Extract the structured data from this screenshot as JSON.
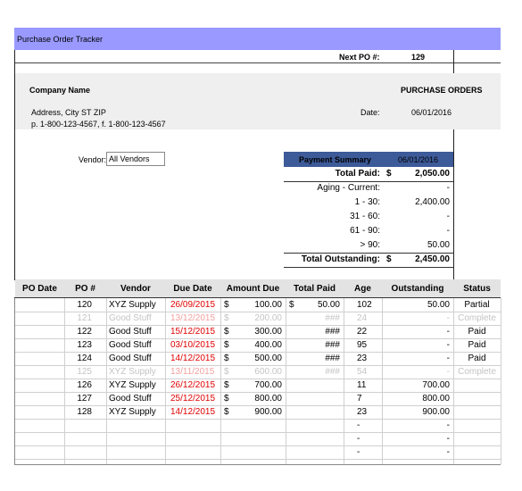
{
  "sheet": {
    "title": "Purchase Order Tracker",
    "next_po_label": "Next PO #:",
    "next_po_value": "129"
  },
  "header": {
    "company_name": "Company Name",
    "doc_title": "PURCHASE ORDERS",
    "address": "Address, City ST ZIP",
    "phone_fax": "p. 1-800-123-4567, f. 1-800-123-4567",
    "date_label": "Date:",
    "date_value": "06/01/2016"
  },
  "filter": {
    "vendor_label": "Vendor:",
    "vendor_value": "All Vendors"
  },
  "summary": {
    "title": "Payment Summary",
    "date": "06/01/2016",
    "rows": [
      {
        "label": "Total Paid:",
        "cur": "$",
        "value": "2,050.00",
        "bold": true
      },
      {
        "label": "Aging - Current:",
        "cur": "",
        "value": "-",
        "bold": false
      },
      {
        "label": "1 - 30:",
        "cur": "",
        "value": "2,400.00",
        "bold": false
      },
      {
        "label": "31 - 60:",
        "cur": "",
        "value": "-",
        "bold": false
      },
      {
        "label": "61 - 90:",
        "cur": "",
        "value": "-",
        "bold": false
      },
      {
        "label": "> 90:",
        "cur": "",
        "value": "50.00",
        "bold": false
      },
      {
        "label": "Total Outstanding:",
        "cur": "$",
        "value": "2,450.00",
        "bold": true
      }
    ]
  },
  "table": {
    "columns": [
      "PO Date",
      "PO #",
      "Vendor",
      "Due Date",
      "Amount Due",
      "Total Paid",
      "Age",
      "Outstanding",
      "Status"
    ],
    "rows": [
      {
        "po": "120",
        "vendor": "XYZ Supply",
        "due": "26/09/2015",
        "amt_cur": "$",
        "amt": "100.00",
        "paid_cur": "$",
        "paid": "50.00",
        "age": "102",
        "out": "50.00",
        "status": "Partial",
        "style": "normal"
      },
      {
        "po": "121",
        "vendor": "Good Stuff",
        "due": "13/12/2015",
        "amt_cur": "$",
        "amt": "200.00",
        "paid_cur": "",
        "paid": "###",
        "age": "24",
        "out": "-",
        "status": "Complete",
        "style": "faded"
      },
      {
        "po": "122",
        "vendor": "Good Stuff",
        "due": "15/12/2015",
        "amt_cur": "$",
        "amt": "300.00",
        "paid_cur": "",
        "paid": "###",
        "age": "22",
        "out": "-",
        "status": "Paid",
        "style": "normal"
      },
      {
        "po": "123",
        "vendor": "Good Stuff",
        "due": "03/10/2015",
        "amt_cur": "$",
        "amt": "400.00",
        "paid_cur": "",
        "paid": "###",
        "age": "95",
        "out": "-",
        "status": "Paid",
        "style": "normal"
      },
      {
        "po": "124",
        "vendor": "Good Stuff",
        "due": "14/12/2015",
        "amt_cur": "$",
        "amt": "500.00",
        "paid_cur": "",
        "paid": "###",
        "age": "23",
        "out": "-",
        "status": "Paid",
        "style": "normal"
      },
      {
        "po": "125",
        "vendor": "XYZ Supply",
        "due": "13/11/2015",
        "amt_cur": "$",
        "amt": "600.00",
        "paid_cur": "",
        "paid": "###",
        "age": "54",
        "out": "-",
        "status": "Complete",
        "style": "faded"
      },
      {
        "po": "126",
        "vendor": "XYZ Supply",
        "due": "26/12/2015",
        "amt_cur": "$",
        "amt": "700.00",
        "paid_cur": "",
        "paid": "",
        "age": "11",
        "out": "700.00",
        "status": "",
        "style": "normal"
      },
      {
        "po": "127",
        "vendor": "Good Stuff",
        "due": "25/12/2015",
        "amt_cur": "$",
        "amt": "800.00",
        "paid_cur": "",
        "paid": "",
        "age": "7",
        "out": "800.00",
        "status": "",
        "style": "normal"
      },
      {
        "po": "128",
        "vendor": "XYZ Supply",
        "due": "14/12/2015",
        "amt_cur": "$",
        "amt": "900.00",
        "paid_cur": "",
        "paid": "",
        "age": "23",
        "out": "900.00",
        "status": "",
        "style": "normal"
      },
      {
        "po": "",
        "vendor": "",
        "due": "",
        "amt_cur": "",
        "amt": "",
        "paid_cur": "",
        "paid": "",
        "age": "-",
        "out": "-",
        "status": "",
        "style": "normal"
      },
      {
        "po": "",
        "vendor": "",
        "due": "",
        "amt_cur": "",
        "amt": "",
        "paid_cur": "",
        "paid": "",
        "age": "-",
        "out": "-",
        "status": "",
        "style": "normal"
      },
      {
        "po": "",
        "vendor": "",
        "due": "",
        "amt_cur": "",
        "amt": "",
        "paid_cur": "",
        "paid": "",
        "age": "-",
        "out": "-",
        "status": "",
        "style": "normal"
      }
    ]
  }
}
